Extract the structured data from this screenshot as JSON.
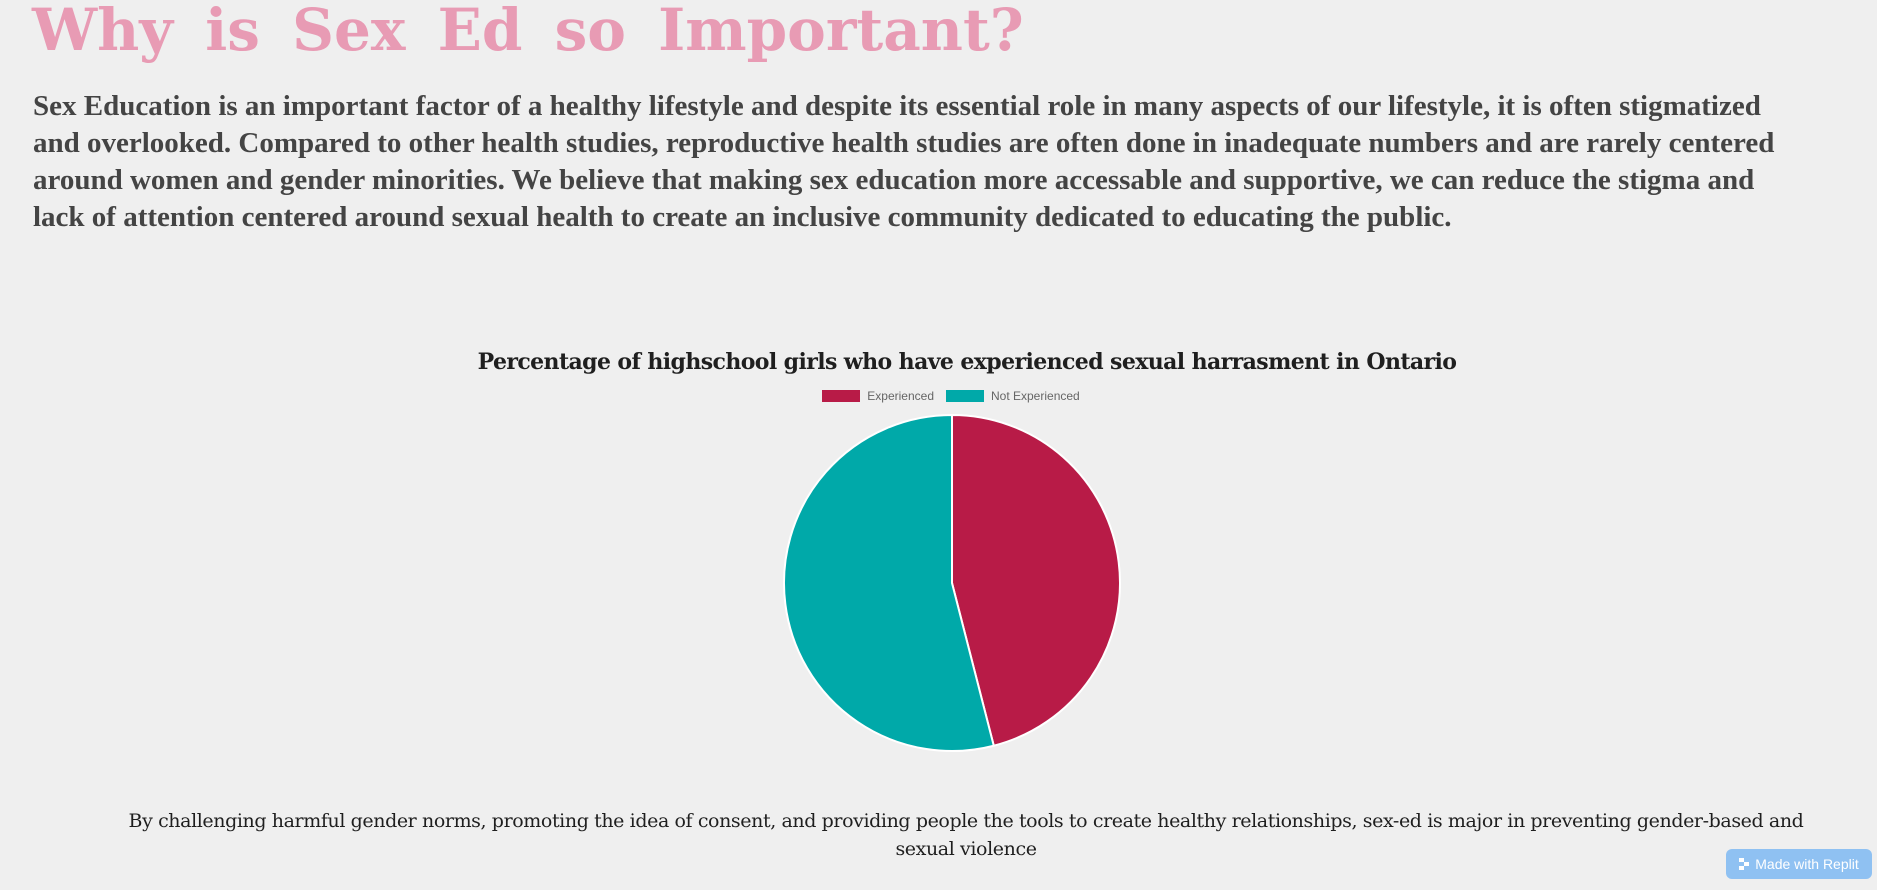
{
  "page": {
    "title": "Why is Sex Ed so Important?",
    "intro": "Sex Education is an important factor of a healthy lifestyle and despite its essential role in many aspects of our lifestyle, it is often stigmatized and overlooked. Compared to other health studies, reproductive health studies are often done in inadequate numbers and are rarely centered around women and gender minorities. We believe that making sex education more accessable and supportive, we can reduce the stigma and lack of attention centered around sexual health to create an inclusive community dedicated to educating the public.",
    "closing": "By challenging harmful gender norms, promoting the idea of consent, and providing people the tools to create healthy relationships, sex-ed is major in preventing gender-based and sexual violence"
  },
  "chart_data": {
    "type": "pie",
    "title": "Percentage of highschool girls who have experienced sexual harrasment in Ontario",
    "legend_position": "top",
    "categories": [
      "Experienced",
      "Not Experienced"
    ],
    "values": [
      46,
      54
    ],
    "colors": [
      "#b81b47",
      "#00a9a9"
    ]
  },
  "badge": {
    "label": "Made with Replit",
    "icon": "replit-icon",
    "color": "#8fc1f2"
  }
}
